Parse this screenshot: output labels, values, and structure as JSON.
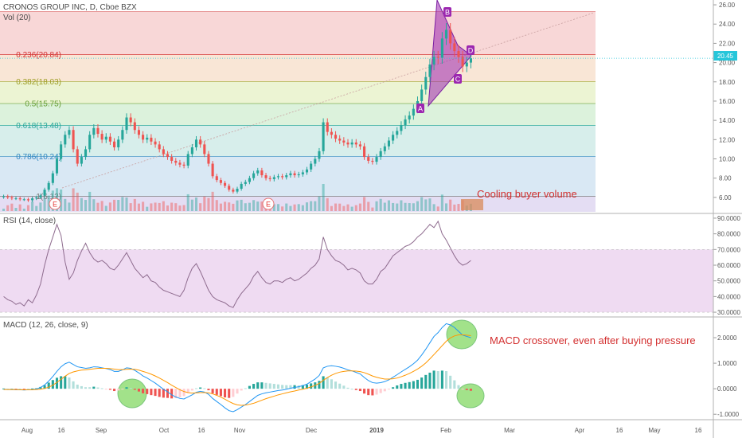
{
  "header": {
    "symbol": "CRONOS GROUP INC, D, Cboe BZX",
    "volume_label": "Vol (20)",
    "rsi_label": "RSI (14, close)",
    "macd_label": "MACD (12, 26, close, 9)"
  },
  "annotations": {
    "volume_note": "Cooling buyer volume",
    "macd_note": "MACD crossover, even after buying pressure"
  },
  "earnings_markers": [
    "E",
    "E"
  ],
  "pattern_points": [
    "A",
    "B",
    "C",
    "D"
  ],
  "last_price_label": "20.45",
  "colors": {
    "up": "#26a69a",
    "down": "#ef5350",
    "rsi_band": "#e1bee7",
    "macd_line": "#2196f3",
    "signal_line": "#ff9800",
    "annotation": "#d32f2f",
    "pattern": "#9c27b0",
    "highlight": "#8bdc6e"
  },
  "chart_data": [
    {
      "type": "candlestick",
      "title": "CRONOS GROUP INC, D, Cboe BZX",
      "x_ticks": [
        "Aug",
        "16",
        "Sep",
        "Oct",
        "16",
        "Nov",
        "Dec",
        "2019",
        "Feb",
        "Mar",
        "Apr",
        "16",
        "May",
        "16"
      ],
      "y_ticks": [
        "26.00",
        "24.00",
        "22.00",
        "20.00",
        "18.00",
        "16.00",
        "14.00",
        "12.00",
        "10.00",
        "8.00",
        "6.00"
      ],
      "ylim": [
        4.5,
        26.5
      ],
      "last_price": 20.45,
      "close_series": [
        6.1,
        6.0,
        5.9,
        5.9,
        5.8,
        5.8,
        5.7,
        5.9,
        6.0,
        6.2,
        6.8,
        7.5,
        8.5,
        10.0,
        11.5,
        12.5,
        13.0,
        11.0,
        9.5,
        10.2,
        11.0,
        12.5,
        13.2,
        12.6,
        12.0,
        12.3,
        11.8,
        11.2,
        12.0,
        13.0,
        14.3,
        13.8,
        13.0,
        12.5,
        12.0,
        12.2,
        11.8,
        11.5,
        11.0,
        10.5,
        10.2,
        9.8,
        9.6,
        9.4,
        9.3,
        10.5,
        11.2,
        12.0,
        11.5,
        10.5,
        9.5,
        8.2,
        7.8,
        7.5,
        7.2,
        6.8,
        6.6,
        6.9,
        7.4,
        7.6,
        8.0,
        8.5,
        8.8,
        8.3,
        8.0,
        7.9,
        8.1,
        8.2,
        8.1,
        8.3,
        8.5,
        8.3,
        8.4,
        8.6,
        8.9,
        9.5,
        10.0,
        10.8,
        13.8,
        12.8,
        12.5,
        12.1,
        11.9,
        11.7,
        11.5,
        11.7,
        11.5,
        11.3,
        10.2,
        9.8,
        9.7,
        10.2,
        10.8,
        11.3,
        11.9,
        12.5,
        12.9,
        13.5,
        14.1,
        14.5,
        15.2,
        16.0,
        17.2,
        18.5,
        19.8,
        20.6,
        20.5,
        22.5,
        23.4,
        22.0,
        21.2,
        20.6,
        19.6,
        20.0,
        20.45
      ],
      "fibonacci": [
        {
          "label": "0.236(20.84)",
          "value": 20.84,
          "color": "#d32f2f"
        },
        {
          "label": "0.382(18.03)",
          "value": 18.03,
          "color": "#9e9d24"
        },
        {
          "label": "0.5(15.75)",
          "value": 15.75,
          "color": "#689f38"
        },
        {
          "label": "0.618(13.48)",
          "value": 13.48,
          "color": "#26a69a"
        },
        {
          "label": "0.786(10.24)",
          "value": 10.24,
          "color": "#2e86c1"
        },
        {
          "label": "1(6.12)",
          "value": 6.12,
          "color": "#777777"
        }
      ],
      "pattern": [
        {
          "point": "A",
          "value": 15.6
        },
        {
          "point": "B",
          "value": 25.3
        },
        {
          "point": "C",
          "value": 19.5
        },
        {
          "point": "D",
          "value": 21.0
        }
      ]
    },
    {
      "type": "line",
      "title": "RSI (14, close)",
      "y_ticks": [
        "90.0000",
        "80.0000",
        "70.0000",
        "60.0000",
        "50.0000",
        "40.0000",
        "30.0000"
      ],
      "ylim": [
        28,
        92
      ],
      "band": [
        30,
        70
      ],
      "series": [
        {
          "values": [
            40,
            38,
            37,
            35,
            36,
            34,
            38,
            36,
            41,
            48,
            60,
            70,
            78,
            86,
            79,
            62,
            51,
            55,
            63,
            69,
            74,
            68,
            64,
            62,
            63,
            61,
            58,
            57,
            60,
            64,
            68,
            63,
            58,
            55,
            52,
            54,
            50,
            49,
            46,
            44,
            43,
            42,
            41,
            40,
            44,
            52,
            58,
            61,
            56,
            50,
            44,
            40,
            38,
            37,
            36,
            34,
            33,
            38,
            42,
            45,
            48,
            53,
            56,
            52,
            49,
            48,
            50,
            50,
            49,
            51,
            52,
            50,
            51,
            53,
            55,
            58,
            60,
            64,
            78,
            70,
            66,
            63,
            62,
            60,
            57,
            58,
            57,
            55,
            50,
            48,
            48,
            51,
            56,
            58,
            62,
            66,
            68,
            70,
            72,
            73,
            75,
            78,
            80,
            83,
            86,
            84,
            88,
            80,
            76,
            71,
            66,
            62,
            60,
            61,
            63
          ]
        }
      ]
    },
    {
      "type": "bar",
      "title": "MACD (12, 26, close, 9)",
      "y_ticks": [
        "2.0000",
        "1.0000",
        "0.0000",
        "-1.0000"
      ],
      "ylim": [
        -1.15,
        2.75
      ],
      "series": [
        {
          "name": "MACD",
          "values": [
            -0.02,
            -0.03,
            -0.03,
            -0.04,
            -0.04,
            -0.05,
            -0.04,
            -0.03,
            -0.01,
            0.05,
            0.15,
            0.3,
            0.48,
            0.68,
            0.86,
            0.98,
            1.04,
            0.95,
            0.86,
            0.83,
            0.8,
            0.82,
            0.86,
            0.85,
            0.82,
            0.79,
            0.75,
            0.68,
            0.68,
            0.74,
            0.82,
            0.8,
            0.72,
            0.62,
            0.5,
            0.42,
            0.32,
            0.22,
            0.1,
            -0.02,
            -0.12,
            -0.24,
            -0.32,
            -0.38,
            -0.4,
            -0.32,
            -0.24,
            -0.14,
            -0.1,
            -0.13,
            -0.22,
            -0.38,
            -0.5,
            -0.62,
            -0.75,
            -0.86,
            -0.9,
            -0.82,
            -0.72,
            -0.62,
            -0.5,
            -0.38,
            -0.26,
            -0.2,
            -0.16,
            -0.13,
            -0.1,
            -0.07,
            -0.05,
            -0.02,
            0.02,
            0.05,
            0.08,
            0.12,
            0.18,
            0.28,
            0.38,
            0.52,
            0.82,
            0.88,
            0.9,
            0.88,
            0.85,
            0.8,
            0.74,
            0.7,
            0.64,
            0.58,
            0.44,
            0.32,
            0.24,
            0.22,
            0.24,
            0.28,
            0.35,
            0.45,
            0.55,
            0.66,
            0.76,
            0.86,
            0.98,
            1.12,
            1.32,
            1.55,
            1.8,
            2.05,
            2.2,
            2.4,
            2.55,
            2.5,
            2.4,
            2.25,
            2.1,
            2.05,
            2.0
          ]
        },
        {
          "name": "Signal",
          "values": [
            -0.03,
            -0.03,
            -0.03,
            -0.03,
            -0.04,
            -0.04,
            -0.04,
            -0.04,
            -0.03,
            -0.02,
            0.01,
            0.06,
            0.14,
            0.25,
            0.37,
            0.49,
            0.6,
            0.66,
            0.7,
            0.73,
            0.74,
            0.76,
            0.78,
            0.8,
            0.8,
            0.8,
            0.79,
            0.77,
            0.75,
            0.75,
            0.76,
            0.77,
            0.76,
            0.73,
            0.68,
            0.63,
            0.57,
            0.5,
            0.42,
            0.33,
            0.24,
            0.14,
            0.05,
            -0.04,
            -0.11,
            -0.15,
            -0.17,
            -0.16,
            -0.15,
            -0.15,
            -0.16,
            -0.2,
            -0.26,
            -0.33,
            -0.41,
            -0.5,
            -0.58,
            -0.63,
            -0.65,
            -0.64,
            -0.61,
            -0.57,
            -0.51,
            -0.45,
            -0.39,
            -0.34,
            -0.29,
            -0.24,
            -0.2,
            -0.16,
            -0.12,
            -0.09,
            -0.05,
            -0.02,
            0.02,
            0.07,
            0.13,
            0.21,
            0.33,
            0.44,
            0.53,
            0.6,
            0.65,
            0.68,
            0.7,
            0.7,
            0.69,
            0.67,
            0.63,
            0.57,
            0.5,
            0.45,
            0.41,
            0.38,
            0.38,
            0.39,
            0.42,
            0.47,
            0.53,
            0.6,
            0.68,
            0.77,
            0.88,
            1.01,
            1.17,
            1.34,
            1.51,
            1.69,
            1.86,
            1.99,
            2.07,
            2.11,
            2.11,
            2.1,
            2.08
          ]
        }
      ]
    }
  ]
}
